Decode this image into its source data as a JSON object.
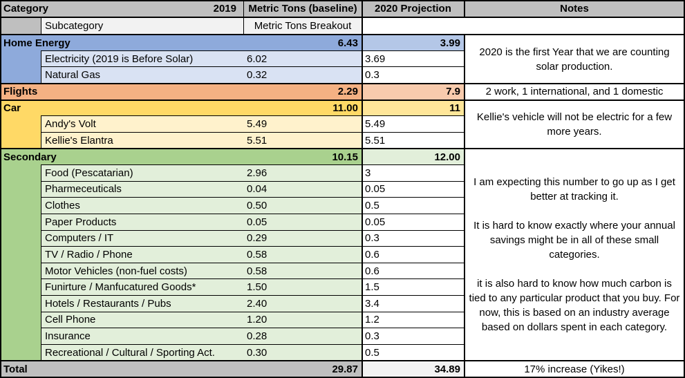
{
  "table": {
    "header": {
      "category": "Category",
      "year": "2019",
      "baseline": "Metric Tons (baseline)",
      "projection": "2020 Projection",
      "notes": "Notes",
      "subcategory": "Subcategory",
      "breakout": "Metric Tons Breakout"
    },
    "colors": {
      "header_bg": "#BFBFBF",
      "subheader_bg": "#F2F2F2",
      "total_bg": "#BFBFBF",
      "total_projection_bg": "#F2F2F2"
    },
    "blocks": [
      {
        "name": "Home Energy",
        "baseline": "6.43",
        "projection": "3.99",
        "colors": {
          "main": "#8EAADB",
          "sub": "#D9E2F3",
          "proj": "#B4C7E7"
        },
        "subs": [
          {
            "label": "Electricity (2019 is Before Solar)",
            "baseline": "6.02",
            "projection": "3.69"
          },
          {
            "label": "Natural Gas",
            "baseline": "0.32",
            "projection": "0.3"
          }
        ],
        "note": "2020 is the first Year that we are counting solar production."
      },
      {
        "name": "Flights",
        "baseline": "2.29",
        "projection": "7.9",
        "colors": {
          "main": "#F4B183",
          "sub": "#FBE5D6",
          "proj": "#F8CBAD"
        },
        "subs": [],
        "note": "2 work, 1 international, and 1 domestic"
      },
      {
        "name": "Car",
        "baseline": "11.00",
        "projection": "11",
        "colors": {
          "main": "#FFD966",
          "sub": "#FFF2CC",
          "proj": "#FFE699"
        },
        "subs": [
          {
            "label": "Andy's Volt",
            "baseline": "5.49",
            "projection": "5.49"
          },
          {
            "label": "Kellie's Elantra",
            "baseline": "5.51",
            "projection": "5.51"
          }
        ],
        "note": "Kellie's vehicle will not be electric for a few more years."
      },
      {
        "name": "Secondary",
        "baseline": "10.15",
        "projection": "12.00",
        "colors": {
          "main": "#A9D18E",
          "sub": "#E2EFDA",
          "proj": "#E2EFDA"
        },
        "subs": [
          {
            "label": "Food (Pescatarian)",
            "baseline": "2.96",
            "projection": "3"
          },
          {
            "label": "Pharmeceuticals",
            "baseline": "0.04",
            "projection": "0.05"
          },
          {
            "label": "Clothes",
            "baseline": "0.50",
            "projection": "0.5"
          },
          {
            "label": "Paper Products",
            "baseline": "0.05",
            "projection": "0.05"
          },
          {
            "label": "Computers / IT",
            "baseline": "0.29",
            "projection": "0.3"
          },
          {
            "label": "TV / Radio / Phone",
            "baseline": "0.58",
            "projection": "0.6"
          },
          {
            "label": "Motor Vehicles (non-fuel costs)",
            "baseline": "0.58",
            "projection": "0.6"
          },
          {
            "label": "Funirture / Manfucatured Goods*",
            "baseline": "1.50",
            "projection": "1.5"
          },
          {
            "label": "Hotels / Restaurants / Pubs",
            "baseline": "2.40",
            "projection": "3.4"
          },
          {
            "label": "Cell Phone",
            "baseline": "1.20",
            "projection": "1.2"
          },
          {
            "label": "Insurance",
            "baseline": "0.28",
            "projection": "0.3"
          },
          {
            "label": "Recreational / Cultural / Sporting Act.",
            "baseline": "0.30",
            "projection": "0.5"
          }
        ],
        "note_paragraphs": [
          "I am expecting this number to go up as I get better at tracking it.",
          "It is hard to know exactly where your annual savings might be in all of these small categories.",
          "it is also hard to know how much carbon is tied to any particular product that you buy. For now, this is based on an industry average based on dollars spent in each category."
        ]
      }
    ],
    "total": {
      "name": "Total",
      "baseline": "29.87",
      "projection": "34.89",
      "note": "17% increase (Yikes!)"
    }
  },
  "chart_data": {
    "type": "table",
    "title": "Carbon Footprint: 2019 Baseline vs 2020 Projection (Metric Tons)",
    "columns": [
      "Category",
      "Subcategory",
      "2019 Metric Tons (baseline)",
      "2020 Projection",
      "Notes"
    ],
    "rows": [
      [
        "Home Energy",
        "",
        6.43,
        3.99,
        "2020 is the first Year that we are counting solar production."
      ],
      [
        "Home Energy",
        "Electricity (2019 is Before Solar)",
        6.02,
        3.69,
        ""
      ],
      [
        "Home Energy",
        "Natural Gas",
        0.32,
        0.3,
        ""
      ],
      [
        "Flights",
        "",
        2.29,
        7.9,
        "2 work, 1 international, and 1 domestic"
      ],
      [
        "Car",
        "",
        11.0,
        11,
        "Kellie's vehicle will not be electric for a few more years."
      ],
      [
        "Car",
        "Andy's Volt",
        5.49,
        5.49,
        ""
      ],
      [
        "Car",
        "Kellie's Elantra",
        5.51,
        5.51,
        ""
      ],
      [
        "Secondary",
        "",
        10.15,
        12.0,
        "I am expecting this number to go up as I get better at tracking it. It is hard to know exactly where your annual savings might be in all of these small categories. it is also hard to know how much carbon is tied to any particular product that you buy. For now, this is based on an industry average based on dollars spent in each category."
      ],
      [
        "Secondary",
        "Food (Pescatarian)",
        2.96,
        3,
        ""
      ],
      [
        "Secondary",
        "Pharmeceuticals",
        0.04,
        0.05,
        ""
      ],
      [
        "Secondary",
        "Clothes",
        0.5,
        0.5,
        ""
      ],
      [
        "Secondary",
        "Paper Products",
        0.05,
        0.05,
        ""
      ],
      [
        "Secondary",
        "Computers / IT",
        0.29,
        0.3,
        ""
      ],
      [
        "Secondary",
        "TV / Radio / Phone",
        0.58,
        0.6,
        ""
      ],
      [
        "Secondary",
        "Motor Vehicles (non-fuel costs)",
        0.58,
        0.6,
        ""
      ],
      [
        "Secondary",
        "Funirture / Manfucatured Goods*",
        1.5,
        1.5,
        ""
      ],
      [
        "Secondary",
        "Hotels / Restaurants / Pubs",
        2.4,
        3.4,
        ""
      ],
      [
        "Secondary",
        "Cell Phone",
        1.2,
        1.2,
        ""
      ],
      [
        "Secondary",
        "Insurance",
        0.28,
        0.3,
        ""
      ],
      [
        "Secondary",
        "Recreational / Cultural / Sporting Act.",
        0.3,
        0.5,
        ""
      ],
      [
        "Total",
        "",
        29.87,
        34.89,
        "17% increase (Yikes!)"
      ]
    ]
  }
}
